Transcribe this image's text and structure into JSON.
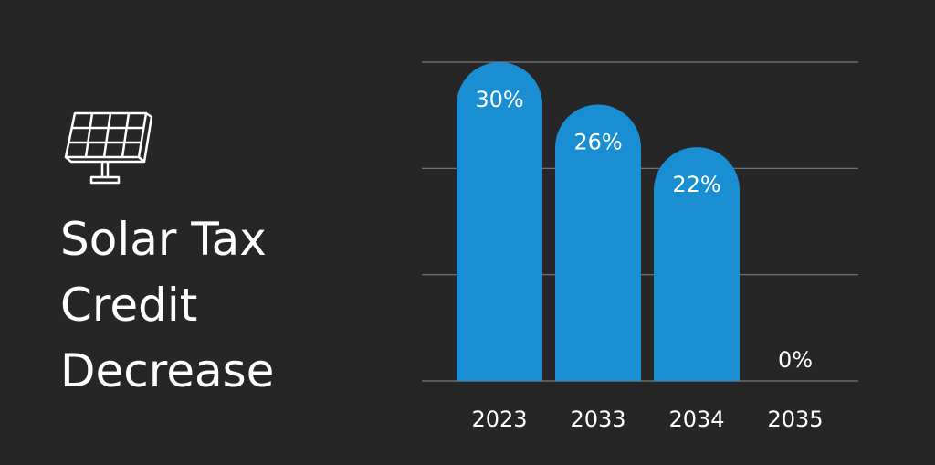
{
  "chart_data": {
    "type": "bar",
    "title": "Solar Tax Credit Decrease",
    "categories": [
      "2023",
      "2033",
      "2034",
      "2035"
    ],
    "values": [
      30,
      26,
      22,
      0
    ],
    "value_labels": [
      "30%",
      "26%",
      "22%",
      "0%"
    ],
    "color": "#1a8ed2",
    "ylim": [
      0,
      30
    ],
    "yticks": [
      0,
      10,
      20,
      30
    ],
    "grid": true
  }
}
